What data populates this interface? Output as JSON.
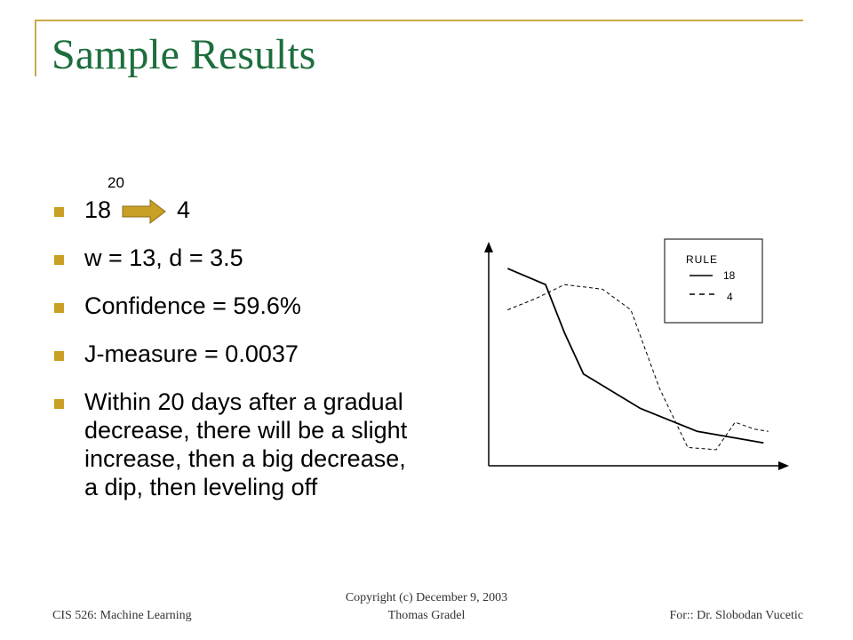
{
  "slide": {
    "title": "Sample Results",
    "bullets": {
      "rule": {
        "from": "18",
        "arrow_label": "20",
        "to": "4"
      },
      "params": "w = 13, d = 3.5",
      "confidence": "Confidence = 59.6%",
      "jmeasure": "J-measure = 0.0037",
      "description": "Within 20 days after a gradual decrease, there will be a slight increase, then a big decrease, a dip, then leveling off"
    },
    "footer": {
      "left": "CIS 526: Machine Learning",
      "center_line1": "Copyright (c) December 9, 2003",
      "center_line2": "Thomas Gradel",
      "right": "For:: Dr. Slobodan Vucetic"
    },
    "colors": {
      "title": "#1d6e3e",
      "frame": "#c9a84a",
      "bullet": "#c9a026",
      "arrow": "#c9a026"
    }
  },
  "chart_data": {
    "type": "line",
    "legend_title": "RULE",
    "legend_placement": "top-right",
    "grid": false,
    "xlim": [
      0,
      30
    ],
    "ylim": [
      0,
      100
    ],
    "series": [
      {
        "name": "18",
        "style": "solid",
        "x": [
          2,
          6,
          8,
          10,
          16,
          22,
          29
        ],
        "y": [
          86,
          79,
          58,
          40,
          25,
          15,
          10
        ]
      },
      {
        "name": "4",
        "style": "dashed",
        "x": [
          2,
          5,
          8,
          12,
          15,
          18,
          21,
          24,
          26,
          28,
          29.5
        ],
        "y": [
          68,
          73,
          79,
          77,
          68,
          34,
          8,
          7,
          19,
          16,
          15
        ]
      }
    ]
  }
}
